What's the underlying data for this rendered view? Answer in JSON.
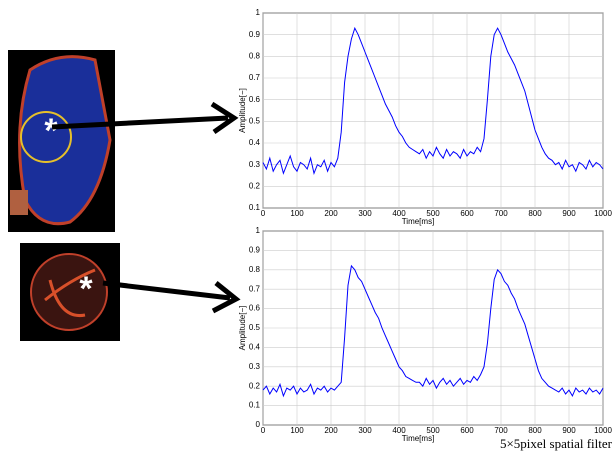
{
  "chart_data": [
    {
      "type": "line",
      "ylabel": "Amplitude[−]",
      "xlabel": "Time[ms]",
      "x": [
        0,
        10,
        20,
        30,
        40,
        50,
        60,
        70,
        80,
        90,
        100,
        110,
        120,
        130,
        140,
        150,
        160,
        170,
        180,
        190,
        200,
        210,
        220,
        230,
        240,
        250,
        260,
        270,
        280,
        290,
        300,
        310,
        320,
        330,
        340,
        350,
        360,
        370,
        380,
        390,
        400,
        410,
        420,
        430,
        440,
        450,
        460,
        470,
        480,
        490,
        500,
        510,
        520,
        530,
        540,
        550,
        560,
        570,
        580,
        590,
        600,
        610,
        620,
        630,
        640,
        650,
        660,
        670,
        680,
        690,
        700,
        710,
        720,
        730,
        740,
        750,
        760,
        770,
        780,
        790,
        800,
        810,
        820,
        830,
        840,
        850,
        860,
        870,
        880,
        890,
        900,
        910,
        920,
        930,
        940,
        950,
        960,
        970,
        980,
        990,
        1000
      ],
      "series": [
        {
          "color": "#0000ff",
          "values": [
            0.31,
            0.28,
            0.33,
            0.27,
            0.3,
            0.32,
            0.26,
            0.3,
            0.34,
            0.29,
            0.27,
            0.31,
            0.3,
            0.28,
            0.33,
            0.26,
            0.3,
            0.29,
            0.32,
            0.27,
            0.31,
            0.29,
            0.33,
            0.45,
            0.68,
            0.8,
            0.88,
            0.93,
            0.9,
            0.86,
            0.82,
            0.78,
            0.74,
            0.7,
            0.66,
            0.62,
            0.58,
            0.55,
            0.52,
            0.48,
            0.45,
            0.43,
            0.4,
            0.38,
            0.37,
            0.36,
            0.35,
            0.37,
            0.33,
            0.36,
            0.34,
            0.38,
            0.35,
            0.33,
            0.37,
            0.34,
            0.36,
            0.35,
            0.33,
            0.37,
            0.34,
            0.36,
            0.35,
            0.38,
            0.36,
            0.42,
            0.6,
            0.8,
            0.9,
            0.93,
            0.9,
            0.86,
            0.82,
            0.79,
            0.76,
            0.72,
            0.68,
            0.64,
            0.58,
            0.52,
            0.46,
            0.42,
            0.38,
            0.35,
            0.33,
            0.32,
            0.3,
            0.31,
            0.28,
            0.32,
            0.29,
            0.3,
            0.27,
            0.31,
            0.3,
            0.28,
            0.32,
            0.29,
            0.31,
            0.3,
            0.28
          ]
        }
      ],
      "xlim": [
        0,
        1000
      ],
      "xticks": [
        0,
        100,
        200,
        300,
        400,
        500,
        600,
        700,
        800,
        900,
        1000
      ],
      "ylim": [
        0.1,
        1
      ],
      "yticks": [
        0.1,
        0.2,
        0.3,
        0.4,
        0.5,
        0.6,
        0.7,
        0.8,
        0.9,
        1
      ],
      "grid": true
    },
    {
      "type": "line",
      "ylabel": "Amplitude[−]",
      "xlabel": "Time[ms]",
      "x": [
        0,
        10,
        20,
        30,
        40,
        50,
        60,
        70,
        80,
        90,
        100,
        110,
        120,
        130,
        140,
        150,
        160,
        170,
        180,
        190,
        200,
        210,
        220,
        230,
        240,
        250,
        260,
        270,
        280,
        290,
        300,
        310,
        320,
        330,
        340,
        350,
        360,
        370,
        380,
        390,
        400,
        410,
        420,
        430,
        440,
        450,
        460,
        470,
        480,
        490,
        500,
        510,
        520,
        530,
        540,
        550,
        560,
        570,
        580,
        590,
        600,
        610,
        620,
        630,
        640,
        650,
        660,
        670,
        680,
        690,
        700,
        710,
        720,
        730,
        740,
        750,
        760,
        770,
        780,
        790,
        800,
        810,
        820,
        830,
        840,
        850,
        860,
        870,
        880,
        890,
        900,
        910,
        920,
        930,
        940,
        950,
        960,
        970,
        980,
        990,
        1000
      ],
      "series": [
        {
          "color": "#0000ff",
          "values": [
            0.18,
            0.2,
            0.16,
            0.19,
            0.17,
            0.21,
            0.15,
            0.19,
            0.18,
            0.2,
            0.16,
            0.19,
            0.17,
            0.18,
            0.21,
            0.16,
            0.19,
            0.18,
            0.2,
            0.17,
            0.19,
            0.18,
            0.2,
            0.22,
            0.45,
            0.72,
            0.82,
            0.8,
            0.76,
            0.74,
            0.7,
            0.66,
            0.62,
            0.58,
            0.55,
            0.5,
            0.46,
            0.42,
            0.38,
            0.34,
            0.3,
            0.28,
            0.25,
            0.24,
            0.23,
            0.22,
            0.22,
            0.2,
            0.24,
            0.21,
            0.23,
            0.19,
            0.22,
            0.24,
            0.21,
            0.23,
            0.2,
            0.22,
            0.24,
            0.21,
            0.23,
            0.22,
            0.25,
            0.23,
            0.26,
            0.3,
            0.42,
            0.6,
            0.75,
            0.8,
            0.78,
            0.74,
            0.72,
            0.68,
            0.65,
            0.6,
            0.56,
            0.52,
            0.46,
            0.4,
            0.34,
            0.28,
            0.24,
            0.22,
            0.2,
            0.19,
            0.18,
            0.17,
            0.19,
            0.16,
            0.18,
            0.15,
            0.19,
            0.17,
            0.18,
            0.16,
            0.19,
            0.17,
            0.18,
            0.16,
            0.19
          ]
        }
      ],
      "xlim": [
        0,
        1000
      ],
      "xticks": [
        0,
        100,
        200,
        300,
        400,
        500,
        600,
        700,
        800,
        900,
        1000
      ],
      "ylim": [
        0,
        1
      ],
      "yticks": [
        0,
        0.1,
        0.2,
        0.3,
        0.4,
        0.5,
        0.6,
        0.7,
        0.8,
        0.9,
        1
      ],
      "grid": true
    }
  ],
  "marker": "*",
  "caption": "5×5pixel spatial filter"
}
